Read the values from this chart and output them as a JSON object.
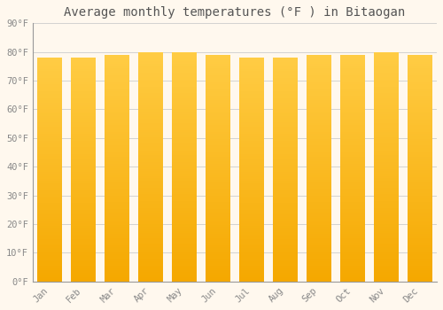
{
  "title": "Average monthly temperatures (°F ) in Bitaogan",
  "months": [
    "Jan",
    "Feb",
    "Mar",
    "Apr",
    "May",
    "Jun",
    "Jul",
    "Aug",
    "Sep",
    "Oct",
    "Nov",
    "Dec"
  ],
  "values": [
    78,
    78,
    79,
    80,
    80,
    79,
    78,
    78,
    79,
    79,
    80,
    79
  ],
  "bar_color_top": "#FFCC44",
  "bar_color_bottom": "#F5A800",
  "background_color": "#FFF8EE",
  "grid_color": "#CCCCCC",
  "text_color": "#888888",
  "title_color": "#555555",
  "ylim": [
    0,
    90
  ],
  "ytick_step": 10,
  "title_fontsize": 10,
  "tick_fontsize": 7.5,
  "font_family": "monospace"
}
